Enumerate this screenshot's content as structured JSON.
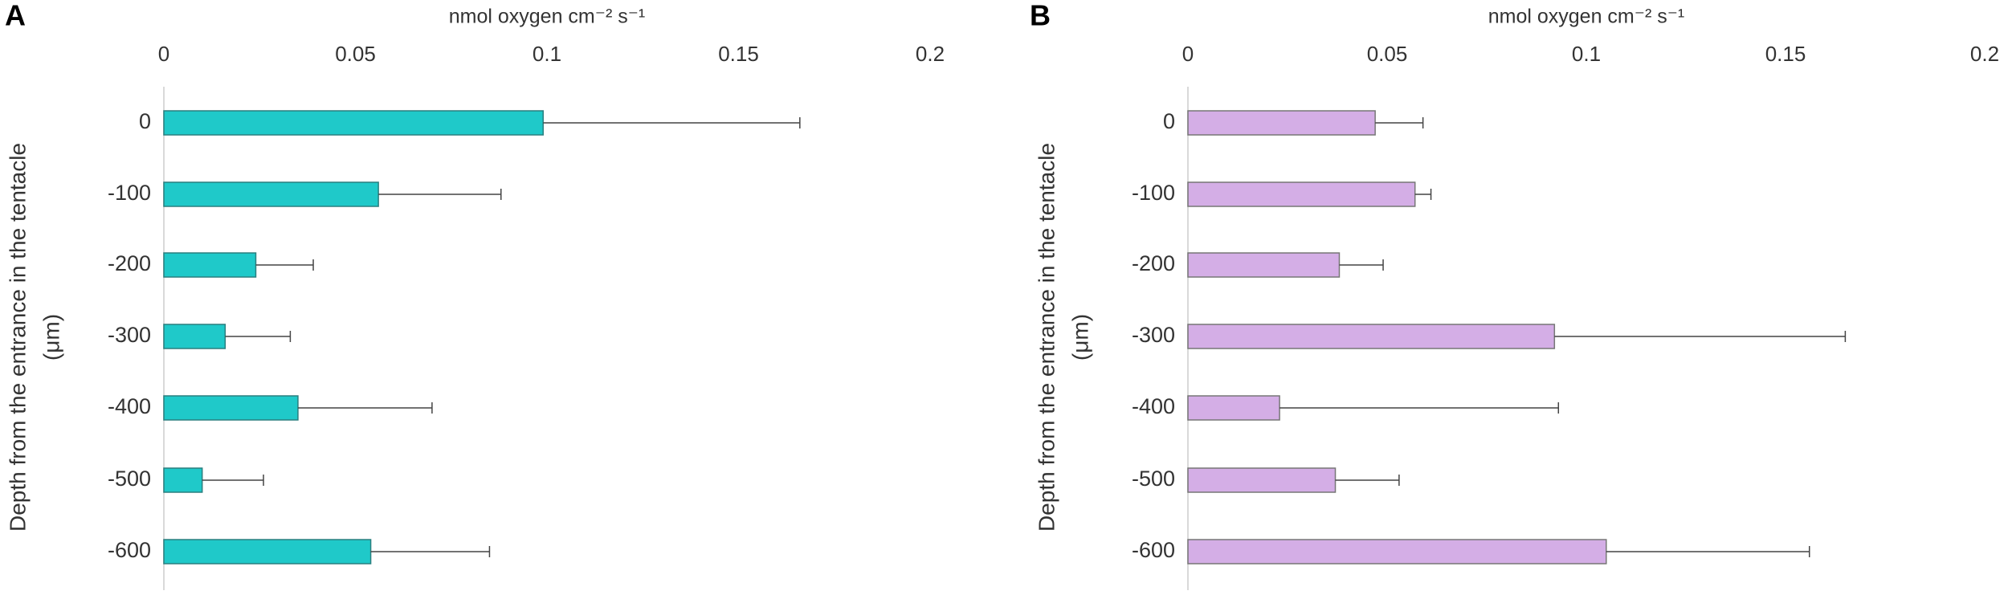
{
  "chart_data": [
    {
      "type": "bar",
      "orientation": "horizontal",
      "panel": "A",
      "x_label": "nmol oxygen cm⁻² s⁻¹",
      "y_label": [
        "Depth from the entrance in the tentacle",
        "(μm)"
      ],
      "categories": [
        "0",
        "-100",
        "-200",
        "-300",
        "-400",
        "-500",
        "-600"
      ],
      "values": [
        0.099,
        0.056,
        0.024,
        0.016,
        0.035,
        0.01,
        0.054
      ],
      "errors": [
        0.067,
        0.032,
        0.015,
        0.017,
        0.035,
        0.016,
        0.031
      ],
      "color": "#1fc9c9",
      "xlim": [
        0,
        0.2
      ],
      "xticks": [
        0,
        0.05,
        0.1,
        0.15,
        0.2
      ]
    },
    {
      "type": "bar",
      "orientation": "horizontal",
      "panel": "B",
      "x_label": "nmol oxygen cm⁻² s⁻¹",
      "y_label": [
        "Depth from the entrance in the tentacle",
        "(μm)"
      ],
      "categories": [
        "0",
        "-100",
        "-200",
        "-300",
        "-400",
        "-500",
        "-600"
      ],
      "values": [
        0.047,
        0.057,
        0.038,
        0.092,
        0.023,
        0.037,
        0.105
      ],
      "errors": [
        0.012,
        0.004,
        0.011,
        0.073,
        0.07,
        0.016,
        0.051
      ],
      "color": "#d4aee6",
      "xlim": [
        0,
        0.2
      ],
      "xticks": [
        0,
        0.05,
        0.1,
        0.15,
        0.2
      ]
    }
  ]
}
